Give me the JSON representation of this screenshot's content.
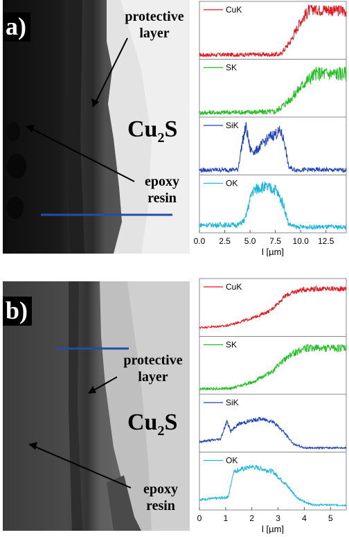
{
  "panels": [
    {
      "label": "a)",
      "annotations": {
        "protective_layer": [
          "protective",
          "layer"
        ],
        "epoxy_resin": [
          "epoxy",
          "resin"
        ],
        "phase_main": "Cu",
        "phase_sub": "2",
        "phase_tail": "S"
      },
      "line_color": "#1f4fa8",
      "chart_data": {
        "type": "line",
        "xlabel": "l [µm]",
        "xlim": [
          0,
          14.5
        ],
        "xticks": [
          "0.0",
          "2.5",
          "5.0",
          "7.5",
          "10.0",
          "12.5"
        ],
        "xtick_values": [
          0,
          2.5,
          5,
          7.5,
          10,
          12.5
        ],
        "series": [
          {
            "name": "CuK",
            "color": "#e8141d",
            "profile": [
              [
                0,
                0.03
              ],
              [
                8,
                0.04
              ],
              [
                9,
                0.3
              ],
              [
                10,
                0.7
              ],
              [
                11,
                0.95
              ],
              [
                14.5,
                0.9
              ]
            ],
            "noise": 0.1
          },
          {
            "name": "SK",
            "color": "#1fbf1f",
            "profile": [
              [
                0,
                0.03
              ],
              [
                7.5,
                0.05
              ],
              [
                9,
                0.3
              ],
              [
                10.5,
                0.65
              ],
              [
                11.5,
                0.8
              ],
              [
                14.5,
                0.8
              ]
            ],
            "noise": 0.12
          },
          {
            "name": "SiK",
            "color": "#1a3fbf",
            "profile": [
              [
                0,
                0.04
              ],
              [
                3.8,
                0.05
              ],
              [
                4.2,
                0.55
              ],
              [
                4.6,
                0.9
              ],
              [
                5,
                0.45
              ],
              [
                5.5,
                0.4
              ],
              [
                6.2,
                0.55
              ],
              [
                7,
                0.7
              ],
              [
                8,
                0.8
              ],
              [
                8.4,
                0.6
              ],
              [
                8.8,
                0.1
              ],
              [
                9.3,
                0.05
              ],
              [
                14.5,
                0.04
              ]
            ],
            "noise": 0.1
          },
          {
            "name": "OK",
            "color": "#19b6e0",
            "profile": [
              [
                0,
                0.1
              ],
              [
                3.8,
                0.1
              ],
              [
                4.5,
                0.2
              ],
              [
                5.2,
                0.75
              ],
              [
                6,
                0.85
              ],
              [
                7.5,
                0.8
              ],
              [
                8.3,
                0.5
              ],
              [
                8.8,
                0.12
              ],
              [
                9.5,
                0.06
              ],
              [
                14.5,
                0.06
              ]
            ],
            "noise": 0.1
          }
        ]
      }
    },
    {
      "label": "b)",
      "annotations": {
        "protective_layer": [
          "protective",
          "layer"
        ],
        "epoxy_resin": [
          "epoxy",
          "resin"
        ],
        "phase_main": "Cu",
        "phase_sub": "2",
        "phase_tail": "S"
      },
      "line_color": "#1f4fa8",
      "chart_data": {
        "type": "line",
        "xlabel": "l [µm]",
        "xlim": [
          0,
          5.6
        ],
        "xticks": [
          "0",
          "1",
          "2",
          "3",
          "4",
          "5"
        ],
        "xtick_values": [
          0,
          1,
          2,
          3,
          4,
          5
        ],
        "series": [
          {
            "name": "CuK",
            "color": "#e8141d",
            "profile": [
              [
                0,
                0.12
              ],
              [
                1,
                0.15
              ],
              [
                2,
                0.3
              ],
              [
                2.7,
                0.45
              ],
              [
                3.3,
                0.75
              ],
              [
                3.8,
                0.85
              ],
              [
                4.2,
                0.88
              ],
              [
                5.6,
                0.88
              ]
            ],
            "noise": 0.04
          },
          {
            "name": "SK",
            "color": "#1fbf1f",
            "profile": [
              [
                0,
                0.05
              ],
              [
                1.2,
                0.06
              ],
              [
                2,
                0.18
              ],
              [
                2.8,
                0.4
              ],
              [
                3.4,
                0.7
              ],
              [
                4,
                0.85
              ],
              [
                5.6,
                0.85
              ]
            ],
            "noise": 0.06
          },
          {
            "name": "SiK",
            "color": "#1a3fbf",
            "profile": [
              [
                0,
                0.15
              ],
              [
                0.8,
                0.2
              ],
              [
                1.05,
                0.55
              ],
              [
                1.2,
                0.35
              ],
              [
                1.5,
                0.5
              ],
              [
                2.3,
                0.6
              ],
              [
                2.8,
                0.55
              ],
              [
                3.2,
                0.35
              ],
              [
                3.6,
                0.1
              ],
              [
                4,
                0.03
              ],
              [
                5.6,
                0.03
              ]
            ],
            "noise": 0.04
          },
          {
            "name": "OK",
            "color": "#19b6e0",
            "profile": [
              [
                0,
                0.15
              ],
              [
                0.8,
                0.18
              ],
              [
                1.1,
                0.2
              ],
              [
                1.3,
                0.7
              ],
              [
                2,
                0.8
              ],
              [
                2.8,
                0.7
              ],
              [
                3.3,
                0.45
              ],
              [
                3.8,
                0.15
              ],
              [
                4.3,
                0.05
              ],
              [
                5.6,
                0.04
              ]
            ],
            "noise": 0.04
          }
        ]
      }
    }
  ]
}
